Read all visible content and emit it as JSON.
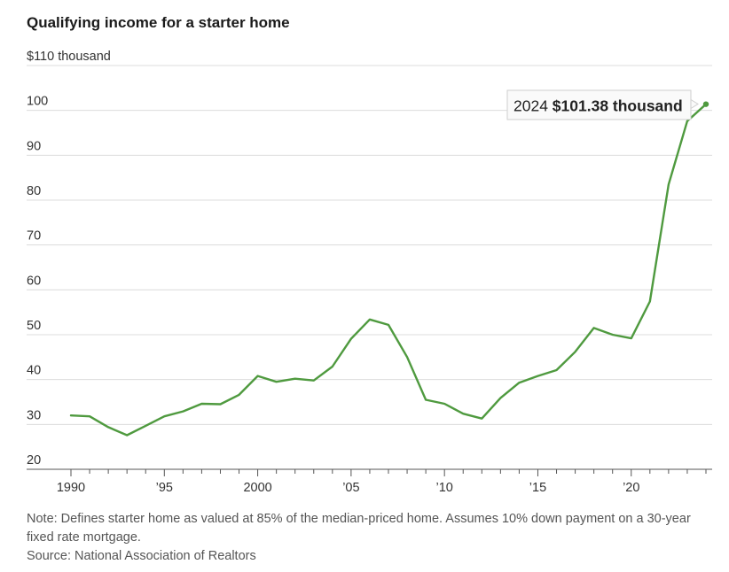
{
  "title": "Qualifying income for a starter home",
  "chart_data": {
    "type": "line",
    "title": "Qualifying income for a starter home",
    "ylabel": "",
    "y_unit_label": "$110 thousand",
    "ylim": [
      20,
      110
    ],
    "xlim": [
      1990,
      2024
    ],
    "y_ticks": [
      {
        "value": 110,
        "label": "$110 thousand"
      },
      {
        "value": 100,
        "label": "100"
      },
      {
        "value": 90,
        "label": "90"
      },
      {
        "value": 80,
        "label": "80"
      },
      {
        "value": 70,
        "label": "70"
      },
      {
        "value": 60,
        "label": "60"
      },
      {
        "value": 50,
        "label": "50"
      },
      {
        "value": 40,
        "label": "40"
      },
      {
        "value": 30,
        "label": "30"
      },
      {
        "value": 20,
        "label": "20"
      }
    ],
    "x_ticks": [
      {
        "value": 1990,
        "label": "1990"
      },
      {
        "value": 1995,
        "label": "’95"
      },
      {
        "value": 2000,
        "label": "2000"
      },
      {
        "value": 2005,
        "label": "’05"
      },
      {
        "value": 2010,
        "label": "’10"
      },
      {
        "value": 2015,
        "label": "’15"
      },
      {
        "value": 2020,
        "label": "’20"
      }
    ],
    "grid": true,
    "color": "#4f9a3f",
    "x": [
      1990,
      1991,
      1992,
      1993,
      1994,
      1995,
      1996,
      1997,
      1998,
      1999,
      2000,
      2001,
      2002,
      2003,
      2004,
      2005,
      2006,
      2007,
      2008,
      2009,
      2010,
      2011,
      2012,
      2013,
      2014,
      2015,
      2016,
      2017,
      2018,
      2019,
      2020,
      2021,
      2022,
      2023,
      2024
    ],
    "y": [
      32.0,
      31.8,
      29.4,
      27.6,
      29.7,
      31.8,
      32.9,
      34.6,
      34.5,
      36.6,
      40.8,
      39.5,
      40.2,
      39.8,
      42.9,
      49.1,
      53.4,
      52.2,
      45.0,
      35.5,
      34.6,
      32.4,
      31.3,
      35.9,
      39.3,
      40.8,
      42.1,
      46.2,
      51.5,
      50.0,
      49.2,
      57.4,
      83.5,
      97.6,
      101.38
    ],
    "annotation": {
      "year_label": "2024",
      "value_label": "$101.38 thousand"
    }
  },
  "footer": {
    "note": "Note: Defines starter home as valued at 85% of the median-priced home. Assumes 10% down payment on a 30-year fixed rate mortgage.",
    "source": "Source: National Association of Realtors"
  }
}
